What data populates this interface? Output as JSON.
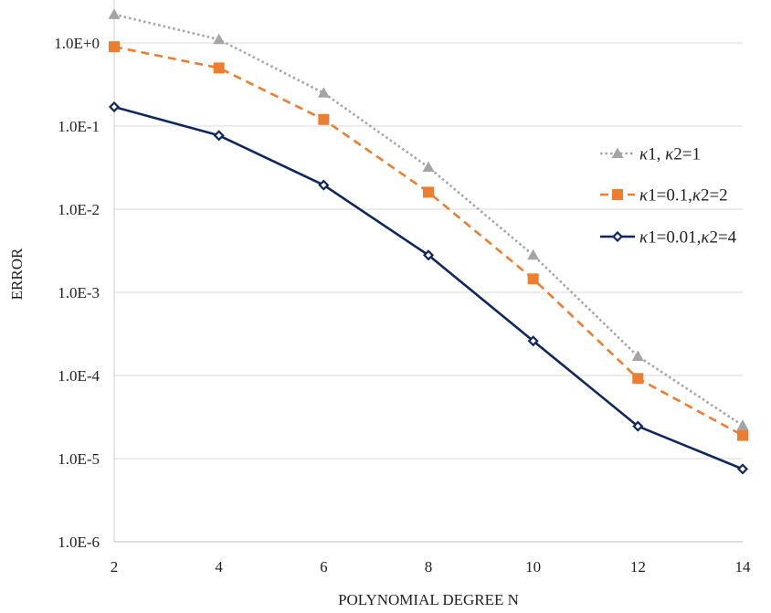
{
  "chart_data": {
    "type": "line",
    "y_scale": "log",
    "title": "",
    "xlabel": "POLYNOMIAL DEGREE N",
    "ylabel": "ERROR",
    "x": [
      2,
      4,
      6,
      8,
      10,
      12,
      14
    ],
    "xlim": [
      2,
      14
    ],
    "ylim": [
      1e-06,
      2.2
    ],
    "x_tick_labels": [
      "2",
      "4",
      "6",
      "8",
      "10",
      "12",
      "14"
    ],
    "y_ticks": [
      {
        "value": 1e-06,
        "label": "1.0E-6"
      },
      {
        "value": 1e-05,
        "label": "1.0E-5"
      },
      {
        "value": 0.0001,
        "label": "1.0E-4"
      },
      {
        "value": 0.001,
        "label": "1.0E-3"
      },
      {
        "value": 0.01,
        "label": "1.0E-2"
      },
      {
        "value": 0.1,
        "label": "1.0E-1"
      },
      {
        "value": 1,
        "label": "1.0E+0"
      }
    ],
    "grid": "horizontal",
    "legend_position": "right",
    "series": [
      {
        "name": "κ1, κ2=1",
        "name_parts": [
          {
            "t": "κ",
            "i": true
          },
          {
            "t": "1, ",
            "i": false
          },
          {
            "t": "κ",
            "i": true
          },
          {
            "t": "2=1",
            "i": false
          }
        ],
        "color": "#A5A5A5",
        "line_style": "dotted",
        "marker": "triangle",
        "values": [
          2.2,
          1.1,
          0.25,
          0.032,
          0.0028,
          0.00017,
          2.5e-05
        ]
      },
      {
        "name": "κ1=0.1,κ2=2",
        "name_parts": [
          {
            "t": "κ",
            "i": true
          },
          {
            "t": "1=0.1,",
            "i": false
          },
          {
            "t": "κ",
            "i": true
          },
          {
            "t": "2=2",
            "i": false
          }
        ],
        "color": "#ED7D31",
        "line_style": "dashed",
        "marker": "square",
        "values": [
          0.9,
          0.5,
          0.12,
          0.016,
          0.00145,
          9.2e-05,
          1.9e-05
        ]
      },
      {
        "name": "κ1=0.01,κ2=4",
        "name_parts": [
          {
            "t": "κ",
            "i": true
          },
          {
            "t": "1=0.01,",
            "i": false
          },
          {
            "t": "κ",
            "i": true
          },
          {
            "t": "2=4",
            "i": false
          }
        ],
        "color": "#0E2760",
        "line_style": "solid",
        "marker": "diamond",
        "values": [
          0.17,
          0.077,
          0.0195,
          0.0028,
          0.00026,
          2.45e-05,
          7.5e-06
        ]
      }
    ]
  }
}
